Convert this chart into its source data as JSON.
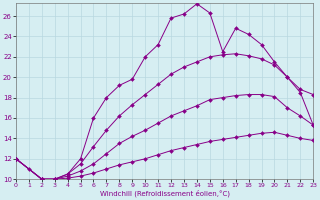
{
  "xlabel": "Windchill (Refroidissement éolien,°C)",
  "bg_color": "#d6eef2",
  "grid_color": "#b8d8e0",
  "line_color": "#880088",
  "xmin": 0,
  "xmax": 23,
  "ymin": 10,
  "ymax": 27,
  "yticks": [
    10,
    12,
    14,
    16,
    18,
    20,
    22,
    24,
    26
  ],
  "xticks": [
    0,
    1,
    2,
    3,
    4,
    5,
    6,
    7,
    8,
    9,
    10,
    11,
    12,
    13,
    14,
    15,
    16,
    17,
    18,
    19,
    20,
    21,
    22,
    23
  ],
  "line1_x": [
    0,
    1,
    2,
    3,
    4,
    5,
    6,
    7,
    8,
    9,
    10,
    11,
    12,
    13,
    14,
    15,
    16,
    17,
    18,
    19,
    20,
    21,
    22,
    23
  ],
  "line1_y": [
    12,
    11,
    10,
    10,
    10.5,
    12.0,
    16.0,
    18.0,
    19.2,
    19.8,
    22.0,
    23.2,
    25.8,
    26.2,
    27.2,
    26.3,
    22.5,
    24.8,
    24.2,
    23.2,
    21.5,
    20.0,
    18.5,
    15.3
  ],
  "line2_x": [
    0,
    2,
    3,
    4,
    5,
    6,
    7,
    8,
    9,
    10,
    11,
    12,
    13,
    14,
    15,
    16,
    17,
    18,
    19,
    20,
    21,
    22,
    23
  ],
  "line2_y": [
    12,
    10,
    10,
    10.5,
    11.5,
    13.2,
    14.8,
    16.2,
    17.3,
    18.3,
    19.3,
    20.3,
    21.0,
    21.5,
    22.0,
    22.2,
    22.3,
    22.1,
    21.8,
    21.2,
    20.0,
    18.8,
    18.3
  ],
  "line3_x": [
    0,
    2,
    3,
    4,
    5,
    6,
    7,
    8,
    9,
    10,
    11,
    12,
    13,
    14,
    15,
    16,
    17,
    18,
    19,
    20,
    21,
    22,
    23
  ],
  "line3_y": [
    12,
    10,
    10,
    10.3,
    10.8,
    11.5,
    12.5,
    13.5,
    14.2,
    14.8,
    15.5,
    16.2,
    16.7,
    17.2,
    17.8,
    18.0,
    18.2,
    18.3,
    18.3,
    18.1,
    17.0,
    16.2,
    15.3
  ],
  "line4_x": [
    0,
    2,
    3,
    4,
    5,
    6,
    7,
    8,
    9,
    10,
    11,
    12,
    13,
    14,
    15,
    16,
    17,
    18,
    19,
    20,
    21,
    22,
    23
  ],
  "line4_y": [
    12,
    10,
    10,
    10.1,
    10.3,
    10.6,
    11.0,
    11.4,
    11.7,
    12.0,
    12.4,
    12.8,
    13.1,
    13.4,
    13.7,
    13.9,
    14.1,
    14.3,
    14.5,
    14.6,
    14.3,
    14.0,
    13.8
  ]
}
